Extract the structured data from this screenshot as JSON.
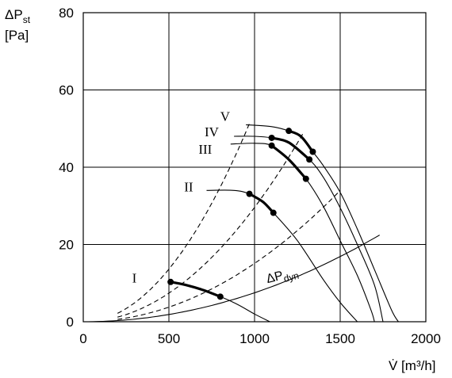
{
  "chart_data": {
    "type": "line",
    "title": "",
    "ylabel": {
      "main": "ΔP",
      "sub": "st",
      "unit": "[Pa]"
    },
    "xlabel": "V̇ [m³/h]",
    "xlim": [
      0,
      2000
    ],
    "ylim": [
      0,
      80
    ],
    "xticks": [
      0,
      500,
      1000,
      1500,
      2000
    ],
    "yticks": [
      0,
      20,
      40,
      60,
      80
    ],
    "grid": true,
    "fan_curves": [
      {
        "name": "I",
        "label_at": [
          330,
          11.2
        ],
        "points": [
          [
            510,
            10.3
          ],
          [
            600,
            9.5
          ],
          [
            700,
            8.2
          ],
          [
            800,
            6.5
          ],
          [
            900,
            4.5
          ],
          [
            1000,
            2.0
          ],
          [
            1090,
            0
          ]
        ],
        "operating": [
          [
            510,
            10.3
          ],
          [
            800,
            6.5
          ]
        ]
      },
      {
        "name": "II",
        "label_at": [
          660,
          34.8
        ],
        "points": [
          [
            720,
            34.0
          ],
          [
            880,
            34.0
          ],
          [
            970,
            33.1
          ],
          [
            1050,
            31.0
          ],
          [
            1110,
            28.2
          ],
          [
            1250,
            21.0
          ],
          [
            1400,
            11.0
          ],
          [
            1500,
            5.0
          ],
          [
            1600,
            0
          ]
        ],
        "operating": [
          [
            970,
            33.1
          ],
          [
            1110,
            28.2
          ]
        ]
      },
      {
        "name": "III",
        "label_at": [
          770,
          44.5
        ],
        "points": [
          [
            860,
            46.0
          ],
          [
            1000,
            46.2
          ],
          [
            1100,
            45.6
          ],
          [
            1200,
            42.0
          ],
          [
            1300,
            37.0
          ],
          [
            1400,
            30.0
          ],
          [
            1500,
            21.0
          ],
          [
            1600,
            12.0
          ],
          [
            1680,
            3.0
          ],
          [
            1700,
            0
          ]
        ],
        "operating": [
          [
            1100,
            45.6
          ],
          [
            1300,
            37.0
          ]
        ]
      },
      {
        "name": "IV",
        "label_at": [
          810,
          49.0
        ],
        "points": [
          [
            880,
            48.0
          ],
          [
            1000,
            48.0
          ],
          [
            1100,
            47.6
          ],
          [
            1200,
            46.4
          ],
          [
            1320,
            42.0
          ],
          [
            1400,
            37.5
          ],
          [
            1500,
            29.5
          ],
          [
            1600,
            20.0
          ],
          [
            1700,
            9.5
          ],
          [
            1750,
            0
          ]
        ],
        "operating": [
          [
            1100,
            47.6
          ],
          [
            1320,
            42.0
          ]
        ]
      },
      {
        "name": "V",
        "label_at": [
          875,
          53.0
        ],
        "points": [
          [
            950,
            51.0
          ],
          [
            1100,
            50.5
          ],
          [
            1200,
            49.4
          ],
          [
            1270,
            48.0
          ],
          [
            1340,
            44.0
          ],
          [
            1400,
            40.5
          ],
          [
            1500,
            33.5
          ],
          [
            1600,
            24.0
          ],
          [
            1700,
            13.5
          ],
          [
            1800,
            3.0
          ],
          [
            1840,
            0
          ]
        ],
        "operating": [
          [
            1200,
            49.4
          ],
          [
            1340,
            44.0
          ]
        ]
      }
    ],
    "system_curves": [
      {
        "coef": 5.45e-05,
        "x_range": [
          200,
          970
        ]
      },
      {
        "coef": 2.96e-05,
        "x_range": [
          200,
          1290
        ]
      },
      {
        "coef": 1.51e-05,
        "x_range": [
          200,
          1500
        ]
      }
    ],
    "dynamic_pressure_curve": {
      "label": "ΔP",
      "label_sub": "dyn",
      "coef": 7.5e-06,
      "x_range": [
        0,
        1730
      ],
      "label_at": [
        1075,
        10.0
      ]
    }
  }
}
